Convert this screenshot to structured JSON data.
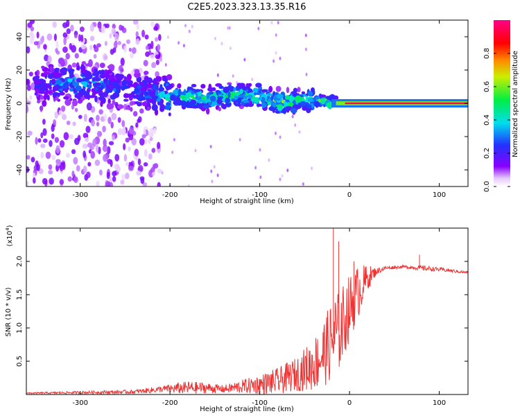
{
  "title": "C2E5.2023.323.13.35.R16",
  "chart_data": [
    {
      "type": "heatmap",
      "xlabel": "Height of straight line (km)",
      "ylabel": "Frequency (Hz)",
      "xlim": [
        -360,
        132
      ],
      "ylim": [
        -50,
        50
      ],
      "xticks": [
        -300,
        -200,
        -100,
        0,
        100
      ],
      "yticks": [
        -40,
        -20,
        0,
        20,
        40
      ],
      "colorbar": {
        "label": "Normalized spectral amplitude",
        "range": [
          0,
          1
        ],
        "ticks": [
          "0.0",
          "0.2",
          "0.4",
          "0.6",
          "0.8"
        ],
        "colormap": "rainbow (white-violet-blue-cyan-green-yellow-red-magenta)"
      },
      "ridge": {
        "x": [
          -350,
          -320,
          -300,
          -280,
          -260,
          -240,
          -220,
          -200,
          -180,
          -160,
          -140,
          -120,
          -100,
          -80,
          -60,
          -40,
          -20,
          0,
          20,
          60,
          100,
          132
        ],
        "freq": [
          10,
          13,
          12,
          11,
          9,
          8,
          5,
          4,
          4,
          3,
          4,
          5,
          4,
          1,
          1,
          2,
          0.5,
          0,
          0,
          0,
          0,
          0
        ],
        "peak_amplitude": [
          0.25,
          0.35,
          0.4,
          0.35,
          0.3,
          0.3,
          0.35,
          0.45,
          0.5,
          0.55,
          0.5,
          0.5,
          0.55,
          0.6,
          0.55,
          0.5,
          0.7,
          0.9,
          0.95,
          0.95,
          0.95,
          0.95
        ]
      }
    },
    {
      "type": "line",
      "xlabel": "Height of straight line (km)",
      "ylabel": "SNR (10 * v/v)",
      "multiplier_label": "(x10",
      "multiplier_exp": "4",
      "xlim": [
        -360,
        132
      ],
      "ylim": [
        0,
        2.5
      ],
      "xticks": [
        -300,
        -200,
        -100,
        0,
        100
      ],
      "yticks": [
        "0.5",
        "1.0",
        "1.5",
        "2.0"
      ],
      "series": [
        {
          "color": "#ee3333",
          "x": [
            -360,
            -300,
            -240,
            -210,
            -180,
            -160,
            -140,
            -120,
            -100,
            -80,
            -60,
            -40,
            -30,
            -20,
            -15,
            -10,
            0,
            10,
            20,
            30,
            40,
            60,
            80,
            100,
            132
          ],
          "y": [
            0.02,
            0.03,
            0.04,
            0.08,
            0.1,
            0.1,
            0.08,
            0.12,
            0.15,
            0.2,
            0.3,
            0.45,
            0.6,
            0.8,
            0.9,
            1.0,
            1.3,
            1.55,
            1.75,
            1.85,
            1.9,
            1.92,
            1.9,
            1.88,
            1.83
          ],
          "noise_amp": [
            0.01,
            0.02,
            0.03,
            0.05,
            0.1,
            0.08,
            0.06,
            0.1,
            0.15,
            0.2,
            0.25,
            0.4,
            0.5,
            0.6,
            0.7,
            0.6,
            0.5,
            0.4,
            0.2,
            0.05,
            0.03,
            0.02,
            0.04,
            0.03,
            0.02
          ]
        }
      ],
      "spikes": [
        {
          "x": -18,
          "y": 2.5
        },
        {
          "x": -12,
          "y": 2.3
        },
        {
          "x": 5,
          "y": 2.0
        },
        {
          "x": 78,
          "y": 2.1
        }
      ]
    }
  ]
}
